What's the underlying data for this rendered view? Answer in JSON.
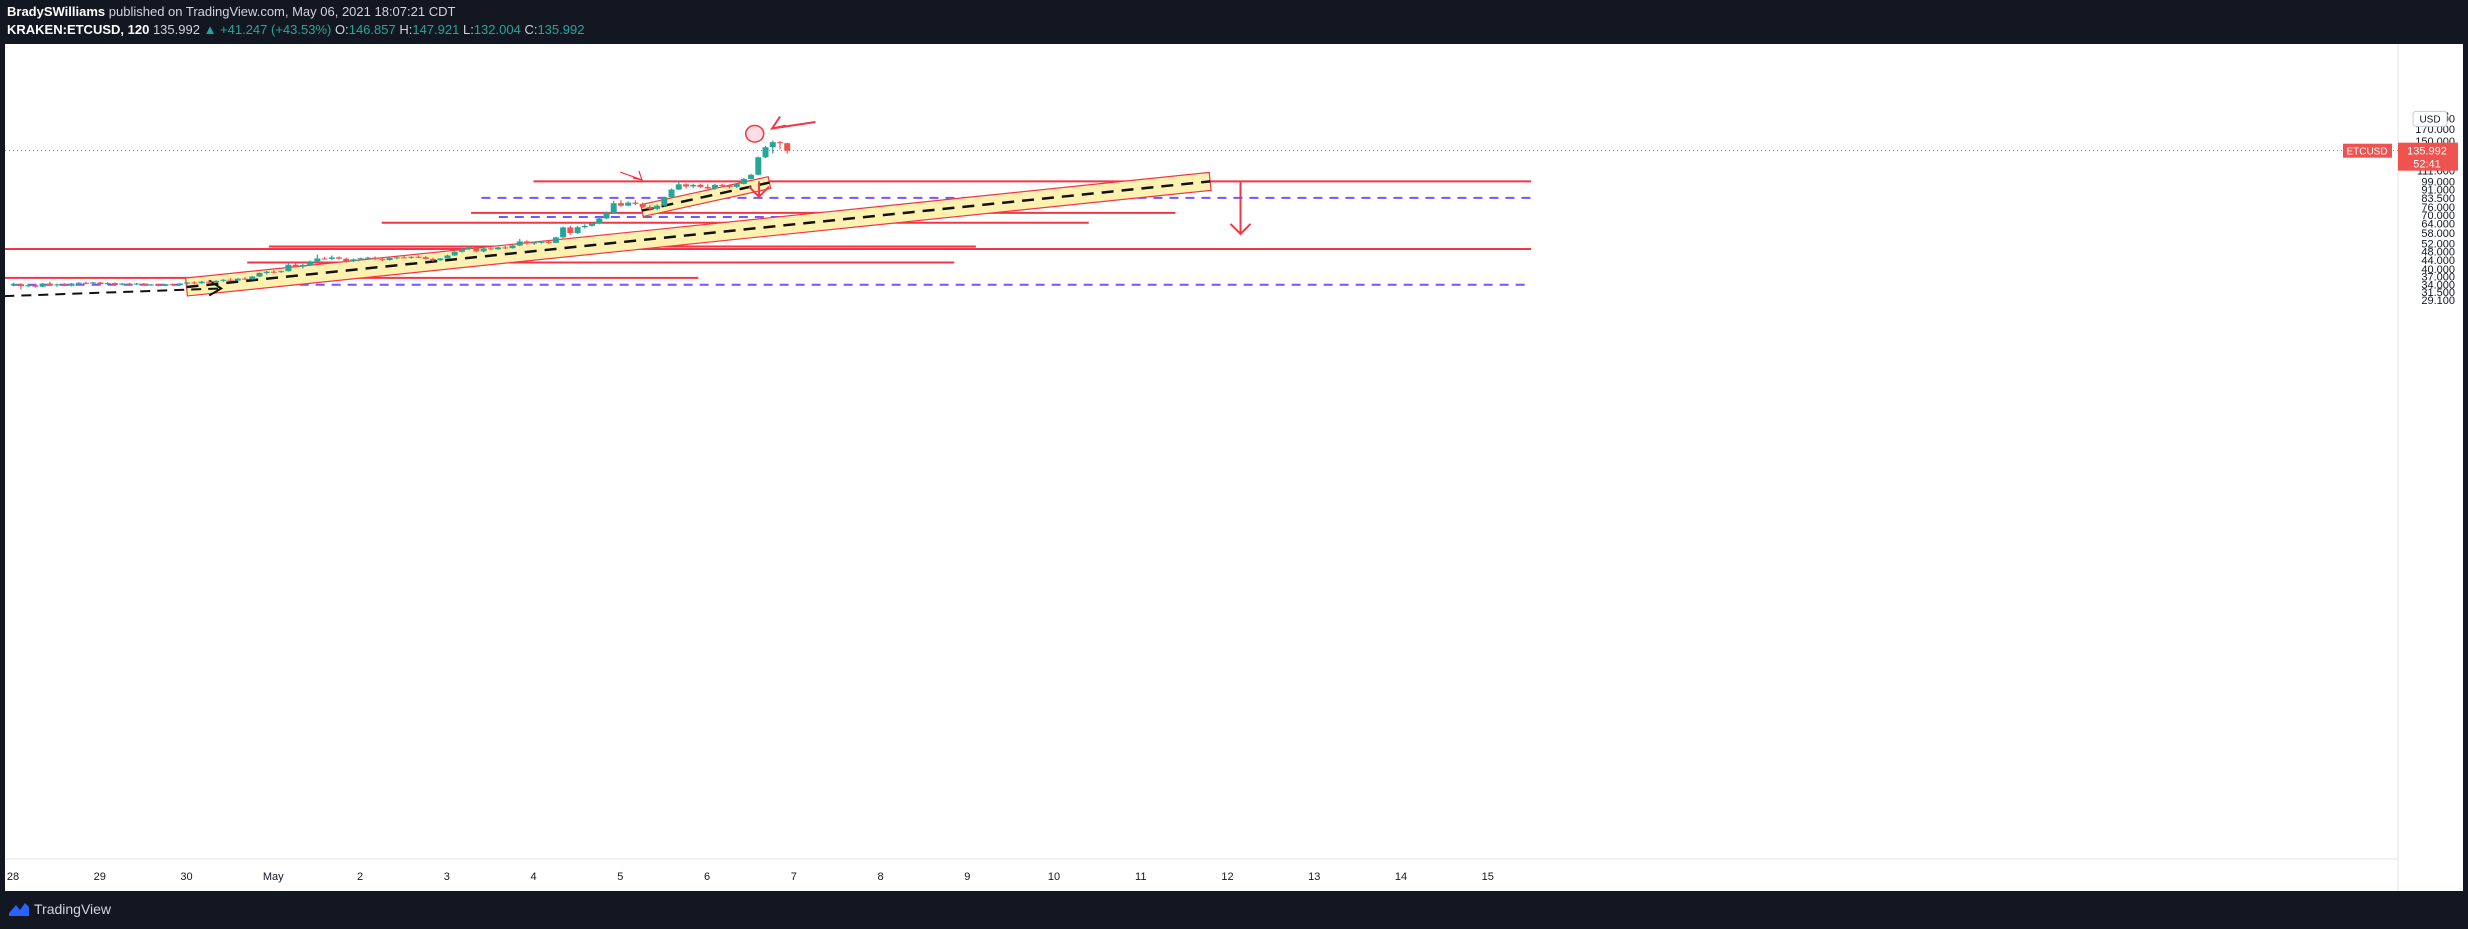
{
  "header": {
    "author": "BradySWilliams",
    "published": "published on TradingView.com, May 06, 2021 18:07:21 CDT",
    "symbol": "KRAKEN:ETCUSD, 120",
    "price": "135.992",
    "change": "▲ +41.247 (+43.53%)",
    "open_label": "O:",
    "open": "146.857",
    "high_label": "H:",
    "high": "147.921",
    "low_label": "L:",
    "low": "132.004",
    "close_label": "C:",
    "close": "135.992"
  },
  "footer": {
    "brand": "TradingView"
  },
  "colors": {
    "bull": "#26a69a",
    "bear": "#ef5350",
    "line": "#f23645",
    "dash": "#7b52ff",
    "channel": "#fff2b0"
  },
  "chart_data": {
    "type": "candlestick",
    "title": "",
    "x_ticks": [
      "28",
      "29",
      "30",
      "May",
      "2",
      "3",
      "4",
      "5",
      "6",
      "7",
      "8",
      "9",
      "10",
      "11",
      "12",
      "13",
      "14",
      "15"
    ],
    "y_ticks": [
      "190.000",
      "170.000",
      "150.000",
      "135.992",
      "123.000",
      "111.000",
      "99.000",
      "91.000",
      "83.500",
      "76.000",
      "70.000",
      "64.000",
      "58.000",
      "52.000",
      "48.000",
      "44.000",
      "40.000",
      "37.000",
      "34.000",
      "31.500",
      "29.100"
    ],
    "y_top_partial": "2",
    "currency": "USD",
    "price_label": "ETCUSD",
    "last_price": "135.992",
    "countdown": "52:41",
    "horizontal_levels": [
      99.0,
      83.5,
      71.5,
      68.5,
      64.5,
      50.5,
      49.2,
      42.8,
      36.5,
      34.0
    ],
    "candles": [
      {
        "t": "Apr 28 00:00",
        "o": 34.0,
        "h": 34.7,
        "l": 33.4,
        "c": 34.2
      },
      {
        "t": "Apr 28 02:00",
        "o": 34.2,
        "h": 34.5,
        "l": 32.4,
        "c": 33.5
      },
      {
        "t": "Apr 28 04:00",
        "o": 33.5,
        "h": 34.3,
        "l": 33.1,
        "c": 33.8
      },
      {
        "t": "Apr 28 06:00",
        "o": 33.8,
        "h": 34.1,
        "l": 33.0,
        "c": 33.3
      },
      {
        "t": "Apr 28 08:00",
        "o": 33.3,
        "h": 34.6,
        "l": 33.1,
        "c": 34.4
      },
      {
        "t": "Apr 28 10:00",
        "o": 34.4,
        "h": 35.1,
        "l": 33.6,
        "c": 33.8
      },
      {
        "t": "Apr 28 12:00",
        "o": 33.8,
        "h": 34.4,
        "l": 33.3,
        "c": 34.1
      },
      {
        "t": "Apr 28 14:00",
        "o": 34.1,
        "h": 34.6,
        "l": 33.5,
        "c": 33.6
      },
      {
        "t": "Apr 28 16:00",
        "o": 33.6,
        "h": 34.6,
        "l": 33.4,
        "c": 34.4
      },
      {
        "t": "Apr 28 18:00",
        "o": 34.4,
        "h": 34.9,
        "l": 34.0,
        "c": 34.7
      },
      {
        "t": "Apr 28 20:00",
        "o": 34.7,
        "h": 35.1,
        "l": 34.2,
        "c": 34.4
      },
      {
        "t": "Apr 28 22:00",
        "o": 34.4,
        "h": 35.0,
        "l": 34.1,
        "c": 34.8
      },
      {
        "t": "Apr 29 00:00",
        "o": 34.8,
        "h": 35.0,
        "l": 34.0,
        "c": 34.2
      },
      {
        "t": "Apr 29 02:00",
        "o": 34.2,
        "h": 34.9,
        "l": 33.9,
        "c": 34.6
      },
      {
        "t": "Apr 29 04:00",
        "o": 34.6,
        "h": 34.8,
        "l": 33.8,
        "c": 34.0
      },
      {
        "t": "Apr 29 06:00",
        "o": 34.0,
        "h": 34.6,
        "l": 33.7,
        "c": 34.4
      },
      {
        "t": "Apr 29 08:00",
        "o": 34.4,
        "h": 34.7,
        "l": 33.9,
        "c": 34.1
      },
      {
        "t": "Apr 29 10:00",
        "o": 34.1,
        "h": 34.6,
        "l": 33.9,
        "c": 34.4
      },
      {
        "t": "Apr 29 12:00",
        "o": 34.4,
        "h": 34.6,
        "l": 33.7,
        "c": 33.9
      },
      {
        "t": "Apr 29 14:00",
        "o": 33.9,
        "h": 34.3,
        "l": 33.6,
        "c": 34.1
      },
      {
        "t": "Apr 29 16:00",
        "o": 34.1,
        "h": 34.3,
        "l": 33.4,
        "c": 33.6
      },
      {
        "t": "Apr 29 18:00",
        "o": 33.6,
        "h": 34.3,
        "l": 33.5,
        "c": 34.2
      },
      {
        "t": "Apr 29 20:00",
        "o": 34.2,
        "h": 34.4,
        "l": 33.8,
        "c": 33.9
      },
      {
        "t": "Apr 29 22:00",
        "o": 33.9,
        "h": 34.6,
        "l": 33.7,
        "c": 34.4
      },
      {
        "t": "Apr 30 00:00",
        "o": 34.4,
        "h": 35.0,
        "l": 34.0,
        "c": 34.8
      },
      {
        "t": "Apr 30 02:00",
        "o": 34.8,
        "h": 35.2,
        "l": 34.2,
        "c": 34.5
      },
      {
        "t": "Apr 30 04:00",
        "o": 34.5,
        "h": 35.4,
        "l": 34.3,
        "c": 35.1
      },
      {
        "t": "Apr 30 06:00",
        "o": 35.1,
        "h": 35.6,
        "l": 34.6,
        "c": 34.9
      },
      {
        "t": "Apr 30 08:00",
        "o": 34.9,
        "h": 35.6,
        "l": 34.7,
        "c": 35.4
      },
      {
        "t": "Apr 30 10:00",
        "o": 35.4,
        "h": 36.0,
        "l": 35.0,
        "c": 35.8
      },
      {
        "t": "Apr 30 12:00",
        "o": 35.8,
        "h": 36.4,
        "l": 35.2,
        "c": 35.5
      },
      {
        "t": "Apr 30 14:00",
        "o": 35.5,
        "h": 36.4,
        "l": 35.3,
        "c": 36.2
      },
      {
        "t": "Apr 30 16:00",
        "o": 36.2,
        "h": 36.8,
        "l": 35.7,
        "c": 36.0
      },
      {
        "t": "Apr 30 18:00",
        "o": 36.0,
        "h": 37.2,
        "l": 35.8,
        "c": 37.0
      },
      {
        "t": "Apr 30 20:00",
        "o": 37.0,
        "h": 38.6,
        "l": 36.8,
        "c": 38.4
      },
      {
        "t": "Apr 30 22:00",
        "o": 38.4,
        "h": 39.2,
        "l": 37.8,
        "c": 38.9
      },
      {
        "t": "May 1 00:00",
        "o": 38.9,
        "h": 39.6,
        "l": 38.2,
        "c": 38.7
      },
      {
        "t": "May 1 02:00",
        "o": 38.7,
        "h": 39.4,
        "l": 38.4,
        "c": 39.1
      },
      {
        "t": "May 1 04:00",
        "o": 39.1,
        "h": 42.5,
        "l": 38.9,
        "c": 41.8
      },
      {
        "t": "May 1 06:00",
        "o": 41.8,
        "h": 42.6,
        "l": 40.6,
        "c": 41.0
      },
      {
        "t": "May 1 08:00",
        "o": 41.0,
        "h": 42.2,
        "l": 40.2,
        "c": 41.7
      },
      {
        "t": "May 1 10:00",
        "o": 41.7,
        "h": 43.7,
        "l": 41.4,
        "c": 43.3
      },
      {
        "t": "May 1 12:00",
        "o": 43.3,
        "h": 46.4,
        "l": 43.0,
        "c": 44.6
      },
      {
        "t": "May 1 14:00",
        "o": 44.6,
        "h": 45.4,
        "l": 44.0,
        "c": 44.4
      },
      {
        "t": "May 1 16:00",
        "o": 44.4,
        "h": 46.0,
        "l": 43.9,
        "c": 45.1
      },
      {
        "t": "May 1 18:00",
        "o": 45.1,
        "h": 45.6,
        "l": 44.0,
        "c": 44.5
      },
      {
        "t": "May 1 20:00",
        "o": 44.5,
        "h": 45.0,
        "l": 42.7,
        "c": 43.4
      },
      {
        "t": "May 1 22:00",
        "o": 43.4,
        "h": 44.6,
        "l": 43.0,
        "c": 44.2
      },
      {
        "t": "May 2 00:00",
        "o": 44.2,
        "h": 45.0,
        "l": 43.7,
        "c": 44.7
      },
      {
        "t": "May 2 02:00",
        "o": 44.7,
        "h": 45.4,
        "l": 44.2,
        "c": 45.0
      },
      {
        "t": "May 2 04:00",
        "o": 45.0,
        "h": 45.5,
        "l": 43.9,
        "c": 44.3
      },
      {
        "t": "May 2 06:00",
        "o": 44.3,
        "h": 44.8,
        "l": 43.3,
        "c": 43.9
      },
      {
        "t": "May 2 08:00",
        "o": 43.9,
        "h": 45.2,
        "l": 43.6,
        "c": 44.8
      },
      {
        "t": "May 2 10:00",
        "o": 44.8,
        "h": 45.5,
        "l": 44.2,
        "c": 45.1
      },
      {
        "t": "May 2 12:00",
        "o": 45.1,
        "h": 45.8,
        "l": 44.6,
        "c": 44.9
      },
      {
        "t": "May 2 14:00",
        "o": 44.9,
        "h": 45.6,
        "l": 44.5,
        "c": 45.4
      },
      {
        "t": "May 2 16:00",
        "o": 45.4,
        "h": 46.0,
        "l": 44.9,
        "c": 45.2
      },
      {
        "t": "May 2 18:00",
        "o": 45.2,
        "h": 45.7,
        "l": 44.1,
        "c": 44.4
      },
      {
        "t": "May 2 20:00",
        "o": 44.4,
        "h": 45.0,
        "l": 43.2,
        "c": 43.8
      },
      {
        "t": "May 2 22:00",
        "o": 43.8,
        "h": 44.8,
        "l": 43.5,
        "c": 44.6
      },
      {
        "t": "May 3 00:00",
        "o": 44.6,
        "h": 46.4,
        "l": 44.4,
        "c": 46.0
      },
      {
        "t": "May 3 02:00",
        "o": 46.0,
        "h": 48.2,
        "l": 45.8,
        "c": 47.8
      },
      {
        "t": "May 3 04:00",
        "o": 47.8,
        "h": 49.8,
        "l": 47.4,
        "c": 49.2
      },
      {
        "t": "May 3 06:00",
        "o": 49.2,
        "h": 50.6,
        "l": 48.6,
        "c": 49.9
      },
      {
        "t": "May 3 08:00",
        "o": 49.9,
        "h": 50.3,
        "l": 47.6,
        "c": 48.0
      },
      {
        "t": "May 3 10:00",
        "o": 48.0,
        "h": 49.8,
        "l": 47.6,
        "c": 49.5
      },
      {
        "t": "May 3 12:00",
        "o": 49.5,
        "h": 50.1,
        "l": 48.7,
        "c": 49.0
      },
      {
        "t": "May 3 14:00",
        "o": 49.0,
        "h": 50.4,
        "l": 48.8,
        "c": 50.0
      },
      {
        "t": "May 3 16:00",
        "o": 50.0,
        "h": 50.8,
        "l": 49.2,
        "c": 49.6
      },
      {
        "t": "May 3 18:00",
        "o": 49.6,
        "h": 51.4,
        "l": 49.4,
        "c": 51.0
      },
      {
        "t": "May 3 20:00",
        "o": 51.0,
        "h": 54.6,
        "l": 50.7,
        "c": 53.2
      },
      {
        "t": "May 3 22:00",
        "o": 53.2,
        "h": 53.8,
        "l": 51.4,
        "c": 52.2
      },
      {
        "t": "May 4 00:00",
        "o": 52.2,
        "h": 53.0,
        "l": 51.3,
        "c": 52.6
      },
      {
        "t": "May 4 02:00",
        "o": 52.6,
        "h": 53.5,
        "l": 52.0,
        "c": 53.0
      },
      {
        "t": "May 4 04:00",
        "o": 53.0,
        "h": 53.6,
        "l": 52.0,
        "c": 52.4
      },
      {
        "t": "May 4 06:00",
        "o": 52.4,
        "h": 55.8,
        "l": 52.2,
        "c": 55.5
      },
      {
        "t": "May 4 08:00",
        "o": 55.5,
        "h": 62.0,
        "l": 55.0,
        "c": 61.5
      },
      {
        "t": "May 4 10:00",
        "o": 61.5,
        "h": 62.5,
        "l": 57.0,
        "c": 58.0
      },
      {
        "t": "May 4 12:00",
        "o": 58.0,
        "h": 62.5,
        "l": 57.4,
        "c": 61.6
      },
      {
        "t": "May 4 14:00",
        "o": 61.6,
        "h": 63.5,
        "l": 60.8,
        "c": 62.5
      },
      {
        "t": "May 4 16:00",
        "o": 62.5,
        "h": 64.6,
        "l": 62.0,
        "c": 64.0
      },
      {
        "t": "May 4 18:00",
        "o": 64.0,
        "h": 68.5,
        "l": 63.5,
        "c": 67.5
      },
      {
        "t": "May 4 20:00",
        "o": 67.5,
        "h": 72.5,
        "l": 67.0,
        "c": 71.5
      },
      {
        "t": "May 4 22:00",
        "o": 71.5,
        "h": 81.0,
        "l": 71.0,
        "c": 79.0
      },
      {
        "t": "May 5 00:00",
        "o": 79.0,
        "h": 81.5,
        "l": 76.0,
        "c": 77.0
      },
      {
        "t": "May 5 02:00",
        "o": 77.0,
        "h": 80.5,
        "l": 76.5,
        "c": 79.5
      },
      {
        "t": "May 5 04:00",
        "o": 79.5,
        "h": 81.5,
        "l": 77.5,
        "c": 78.5
      },
      {
        "t": "May 5 06:00",
        "o": 78.5,
        "h": 79.5,
        "l": 75.0,
        "c": 76.0
      },
      {
        "t": "May 5 08:00",
        "o": 76.0,
        "h": 77.5,
        "l": 73.0,
        "c": 74.5
      },
      {
        "t": "May 5 10:00",
        "o": 74.5,
        "h": 78.0,
        "l": 73.5,
        "c": 77.0
      },
      {
        "t": "May 5 12:00",
        "o": 77.0,
        "h": 84.5,
        "l": 76.5,
        "c": 84.0
      },
      {
        "t": "May 5 14:00",
        "o": 84.0,
        "h": 92.0,
        "l": 83.5,
        "c": 91.0
      },
      {
        "t": "May 5 16:00",
        "o": 91.0,
        "h": 99.5,
        "l": 90.5,
        "c": 96.0
      },
      {
        "t": "May 5 18:00",
        "o": 96.0,
        "h": 97.0,
        "l": 92.0,
        "c": 94.0
      },
      {
        "t": "May 5 20:00",
        "o": 94.0,
        "h": 96.5,
        "l": 92.5,
        "c": 95.5
      },
      {
        "t": "May 5 22:00",
        "o": 95.5,
        "h": 96.5,
        "l": 92.5,
        "c": 93.5
      },
      {
        "t": "May 6 00:00",
        "o": 93.5,
        "h": 96.0,
        "l": 91.0,
        "c": 92.0
      },
      {
        "t": "May 6 02:00",
        "o": 92.0,
        "h": 96.5,
        "l": 90.5,
        "c": 95.5
      },
      {
        "t": "May 6 04:00",
        "o": 95.5,
        "h": 96.5,
        "l": 94.0,
        "c": 95.0
      },
      {
        "t": "May 6 06:00",
        "o": 95.0,
        "h": 96.0,
        "l": 92.0,
        "c": 93.5
      },
      {
        "t": "May 6 08:00",
        "o": 93.5,
        "h": 97.0,
        "l": 92.5,
        "c": 96.5
      },
      {
        "t": "May 6 10:00",
        "o": 96.5,
        "h": 102.5,
        "l": 96.0,
        "c": 101.5
      },
      {
        "t": "May 6 12:00",
        "o": 101.5,
        "h": 107.0,
        "l": 101.0,
        "c": 106.0
      },
      {
        "t": "May 6 14:00",
        "o": 106.0,
        "h": 128.0,
        "l": 105.5,
        "c": 127.0
      },
      {
        "t": "May 6 16:00",
        "o": 127.0,
        "h": 143.0,
        "l": 126.0,
        "c": 141.0
      },
      {
        "t": "May 6 18:00",
        "o": 141.0,
        "h": 151.0,
        "l": 132.0,
        "c": 148.5
      },
      {
        "t": "May 6 20:00",
        "o": 148.5,
        "h": 150.5,
        "l": 138.0,
        "c": 147.0
      },
      {
        "t": "May 6 22:00",
        "o": 146.9,
        "h": 147.9,
        "l": 132.0,
        "c": 136.0
      }
    ]
  }
}
